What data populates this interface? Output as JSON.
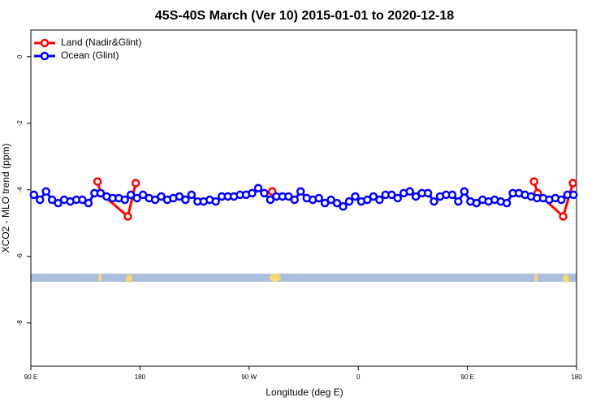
{
  "chart_data": {
    "type": "line",
    "title": "45S-40S March (Ver 10)   2015-01-01 to 2020-12-18",
    "xlabel": "Longitude (deg E)",
    "ylabel": "XCO2 - MLO trend (ppm)",
    "xlim": [
      90,
      540
    ],
    "xticks": [
      {
        "value": 90,
        "label": "90 E"
      },
      180,
      {
        "value": 270,
        "label": "90 W"
      },
      {
        "value": 360,
        "label": "0"
      },
      {
        "value": 450,
        "label": "90 E"
      },
      {
        "value": 540,
        "label": "180"
      }
    ],
    "ylim": [
      -9.3,
      0.8
    ],
    "yticks": [
      0,
      -2,
      -4,
      -6,
      -8
    ],
    "legend": "upper left",
    "series": [
      {
        "name": "Land (Nadir&Glint)",
        "color": "#ff0000",
        "x": [
          145,
          147.5,
          170,
          176.5,
          289,
          505,
          508,
          529,
          537
        ],
        "values": [
          -3.75,
          -4.1,
          -4.8,
          -3.8,
          -4.05,
          -3.75,
          -4.1,
          -4.8,
          -3.8
        ]
      },
      {
        "name": "Ocean (Glint)",
        "color": "#0000ff",
        "x": [
          92.5,
          97.5,
          102.5,
          107.5,
          112.5,
          117.5,
          122.5,
          127.5,
          132.5,
          137.5,
          142.5,
          147.5,
          152.5,
          157.5,
          162.5,
          167.5,
          172.5,
          177.5,
          182.5,
          187.5,
          192.5,
          197.5,
          202.5,
          207.5,
          212.5,
          217.5,
          222.5,
          227.5,
          232.5,
          237.5,
          242.5,
          247.5,
          252.5,
          257.5,
          262.5,
          267.5,
          272.5,
          277.5,
          282.5,
          287.5,
          292.5,
          297.5,
          302.5,
          307.5,
          312.5,
          317.5,
          322.5,
          327.5,
          332.5,
          337.5,
          342.5,
          347.5,
          352.5,
          357.5,
          362.5,
          367.5,
          372.5,
          377.5,
          382.5,
          387.5,
          392.5,
          397.5,
          402.5,
          407.5,
          412.5,
          417.5,
          422.5,
          427.5,
          432.5,
          437.5,
          442.5,
          447.5,
          452.5,
          457.5,
          462.5,
          467.5,
          472.5,
          477.5,
          482.5,
          487.5,
          492.5,
          497.5,
          502.5,
          507.5,
          512.5,
          517.5,
          522.5,
          527.5,
          532.5,
          537.5
        ],
        "values": [
          -4.15,
          -4.3,
          -4.05,
          -4.3,
          -4.4,
          -4.3,
          -4.35,
          -4.3,
          -4.3,
          -4.4,
          -4.1,
          -4.1,
          -4.2,
          -4.25,
          -4.25,
          -4.3,
          -4.15,
          -4.25,
          -4.15,
          -4.25,
          -4.3,
          -4.2,
          -4.3,
          -4.25,
          -4.2,
          -4.3,
          -4.15,
          -4.35,
          -4.35,
          -4.3,
          -4.35,
          -4.2,
          -4.2,
          -4.2,
          -4.15,
          -4.15,
          -4.1,
          -3.95,
          -4.1,
          -4.3,
          -4.2,
          -4.2,
          -4.2,
          -4.3,
          -4.05,
          -4.25,
          -4.3,
          -4.25,
          -4.4,
          -4.3,
          -4.4,
          -4.5,
          -4.35,
          -4.2,
          -4.35,
          -4.3,
          -4.2,
          -4.3,
          -4.15,
          -4.15,
          -4.25,
          -4.1,
          -4.05,
          -4.2,
          -4.1,
          -4.1,
          -4.35,
          -4.2,
          -4.15,
          -4.15,
          -4.35,
          -4.05,
          -4.35,
          -4.4,
          -4.3,
          -4.35,
          -4.3,
          -4.35,
          -4.4,
          -4.1,
          -4.1,
          -4.15,
          -4.2,
          -4.25,
          -4.25,
          -4.3,
          -4.25,
          -4.3,
          -4.15,
          -4.15
        ]
      }
    ]
  }
}
